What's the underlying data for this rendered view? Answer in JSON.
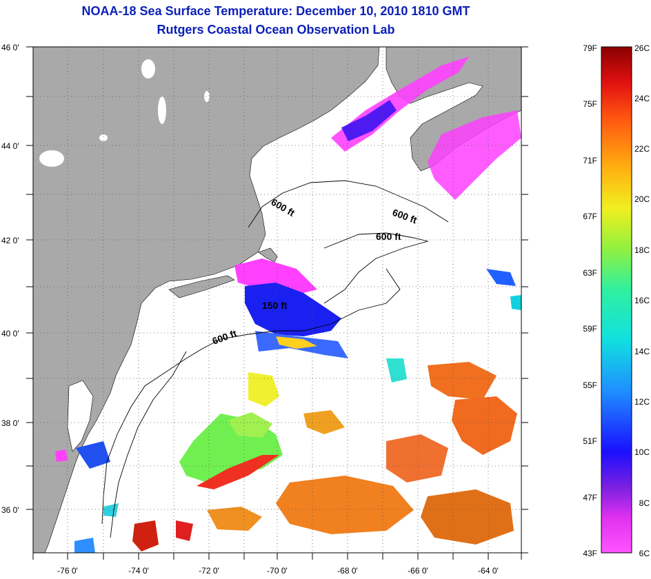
{
  "title": {
    "line1": "NOAA-18 Sea Surface Temperature:  December 10, 2010 1810 GMT",
    "line2": "Rutgers Coastal Ocean Observation Lab"
  },
  "map": {
    "lon_ticks": [
      "-76 0'",
      "-74 0'",
      "-72 0'",
      "-70 0'",
      "-68 0'",
      "-66 0'",
      "-64 0'"
    ],
    "lat_ticks": [
      "46 0'",
      "44 0'",
      "42 0'",
      "40 0'",
      "38 0'",
      "36 0'"
    ],
    "lon_range": [
      -77,
      -63
    ],
    "lat_range": [
      35,
      46
    ],
    "contour_labels": [
      "600 ft",
      "600 ft",
      "600 ft",
      "150 ft",
      "600 ft"
    ],
    "colors": {
      "land": "#a9a9a9",
      "ocean": "#ffffff",
      "title": "#0b1fb8"
    }
  },
  "legend": {
    "f_labels": [
      "79F",
      "75F",
      "71F",
      "67F",
      "63F",
      "59F",
      "55F",
      "51F",
      "47F",
      "43F"
    ],
    "c_labels": [
      "26C",
      "24C",
      "22C",
      "20C",
      "18C",
      "16C",
      "14C",
      "12C",
      "10C",
      "8C",
      "6C"
    ],
    "range_c": [
      6,
      26
    ]
  }
}
